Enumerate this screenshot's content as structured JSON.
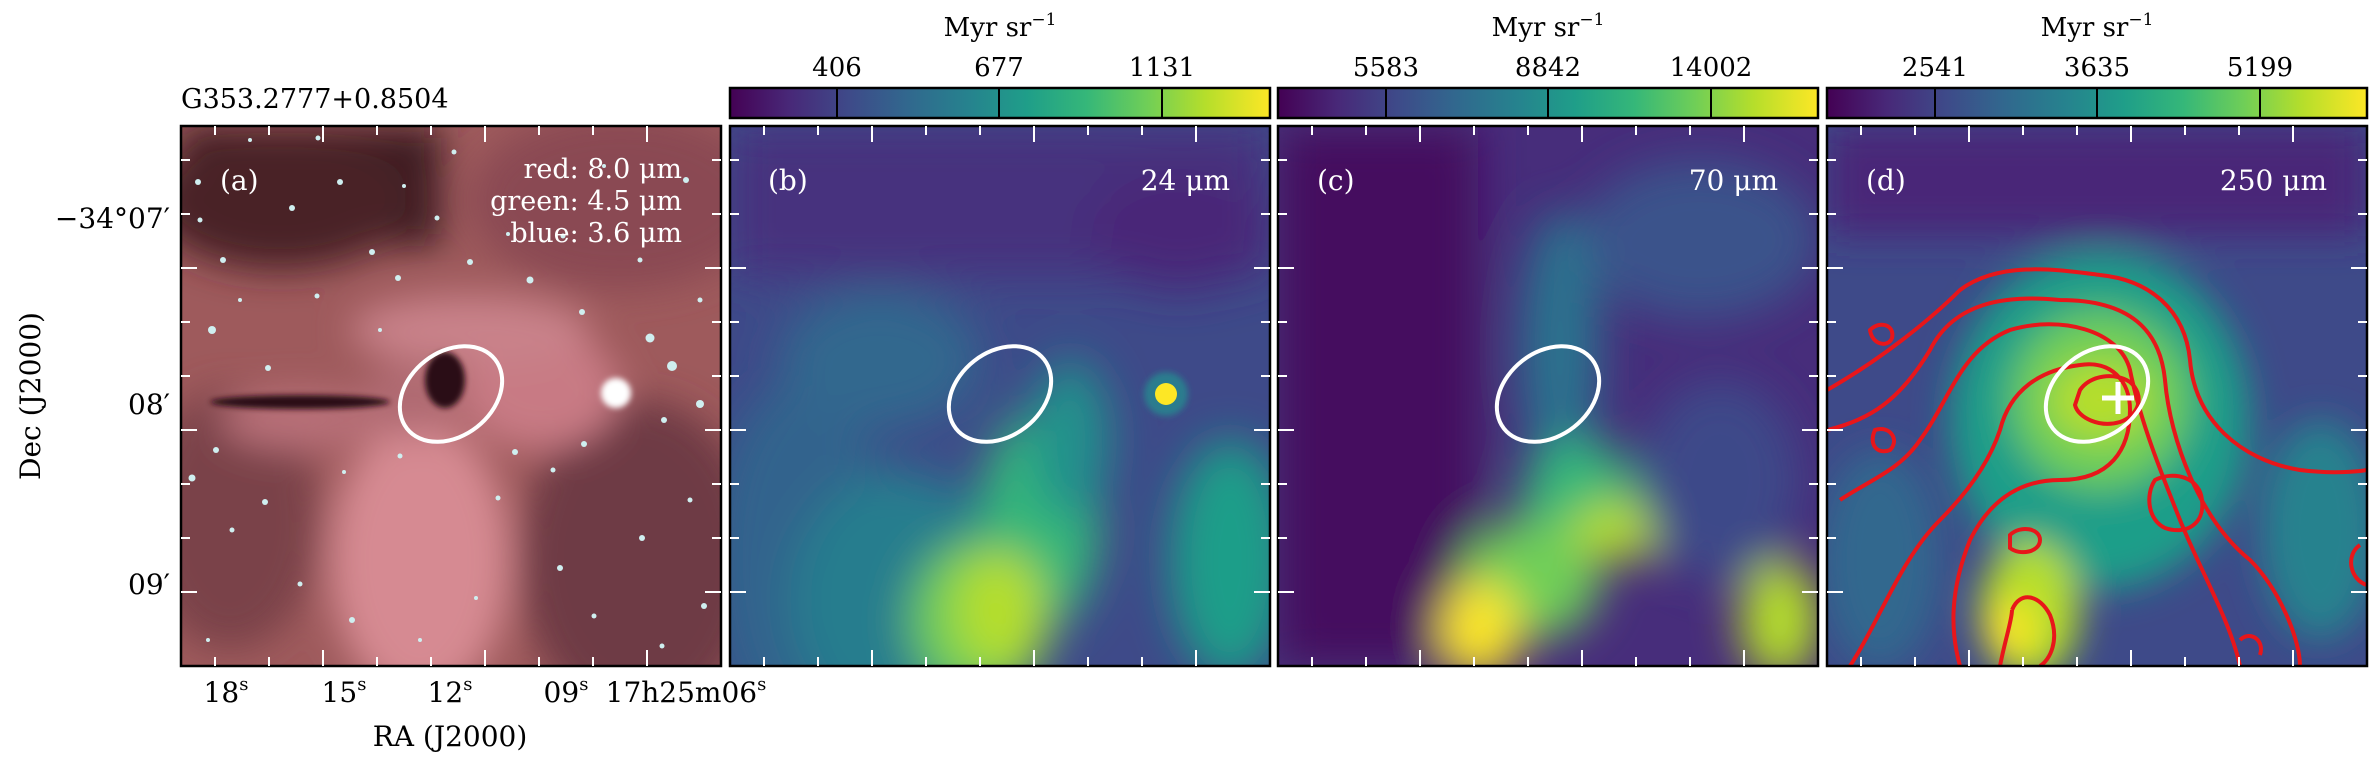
{
  "figure": {
    "source_name": "G353.2777+0.8504",
    "colorbar_unit": "Myr sr",
    "colorbar_unit_exp": "−1"
  },
  "axes": {
    "ylabel": "Dec (J2000)",
    "xlabel": "RA (J2000)",
    "dec_ticks": [
      "−34°07′",
      "08′",
      "09′"
    ],
    "ra_ticks": [
      {
        "val": "18",
        "unit": "s",
        "pre": ""
      },
      {
        "val": "15",
        "unit": "s",
        "pre": ""
      },
      {
        "val": "12",
        "unit": "s",
        "pre": ""
      },
      {
        "val": "09",
        "unit": "s",
        "pre": ""
      },
      {
        "val": "06",
        "unit": "s",
        "pre": "17h25m"
      }
    ]
  },
  "panels": [
    {
      "id": "a",
      "label": "(a)",
      "legend": [
        "red: 8.0 μm",
        "green: 4.5 μm",
        "blue: 3.6 μm"
      ]
    },
    {
      "id": "b",
      "label": "(b)",
      "band": "24 μm",
      "colorbar_ticks": [
        "406",
        "677",
        "1131"
      ]
    },
    {
      "id": "c",
      "label": "(c)",
      "band": "70 μm",
      "colorbar_ticks": [
        "5583",
        "8842",
        "14002"
      ]
    },
    {
      "id": "d",
      "label": "(d)",
      "band": "250 μm",
      "colorbar_ticks": [
        "2541",
        "3635",
        "5199"
      ]
    }
  ],
  "colors": {
    "ellipse": "#ffffff",
    "contour": "#e8161a",
    "marker": "#ffffff",
    "viridis": [
      "#440154",
      "#482878",
      "#3e4a89",
      "#31688e",
      "#26828e",
      "#1f9e89",
      "#35b779",
      "#6ece58",
      "#b5de2b",
      "#fde725"
    ]
  }
}
